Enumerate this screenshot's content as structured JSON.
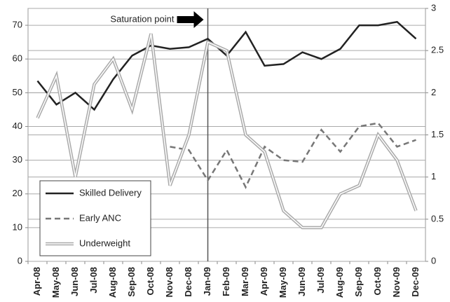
{
  "chart_data": {
    "type": "line",
    "categories": [
      "Apr-08",
      "May-08",
      "Jun-08",
      "Jul-08",
      "Aug-08",
      "Sep-08",
      "Oct-08",
      "Nov-08",
      "Dec-08",
      "Jan-09",
      "Feb-09",
      "Mar-09",
      "Apr-09",
      "May-09",
      "Jun-09",
      "Jul-09",
      "Aug-09",
      "Sep-09",
      "Oct-09",
      "Nov-09",
      "Dec-09"
    ],
    "series": [
      {
        "name": "Skilled Delivery",
        "color": "#222222",
        "style": "solid",
        "values": [
          53.5,
          46.5,
          50,
          45,
          54,
          61,
          64,
          63,
          63.5,
          66,
          61,
          68,
          58,
          58.5,
          62,
          60,
          63,
          70,
          70,
          71,
          66
        ]
      },
      {
        "name": "Early ANC",
        "color": "#777777",
        "style": "dashed",
        "values": [
          null,
          null,
          null,
          null,
          null,
          null,
          null,
          34,
          33,
          24,
          33,
          22,
          34,
          30,
          29.5,
          39,
          32.5,
          40,
          41,
          34,
          36
        ]
      },
      {
        "name": "Underweight",
        "color": "#aaaaaa",
        "style": "double",
        "axis": "y2",
        "values": [
          1.7,
          2.2,
          1.0,
          2.1,
          2.4,
          1.8,
          2.7,
          0.9,
          1.5,
          2.6,
          2.5,
          1.5,
          1.3,
          0.6,
          0.4,
          0.4,
          0.8,
          0.9,
          1.5,
          1.2,
          0.6
        ]
      }
    ],
    "ylim": [
      0,
      75
    ],
    "yticks": [
      0,
      10,
      20,
      30,
      40,
      50,
      60,
      70
    ],
    "y2lim": [
      0,
      3
    ],
    "y2ticks": [
      0,
      0.5,
      1,
      1.5,
      2,
      2.5,
      3
    ],
    "grid": true,
    "legend": "lower left",
    "annotation": {
      "text": "Saturation point",
      "at": "Jan-09"
    }
  }
}
